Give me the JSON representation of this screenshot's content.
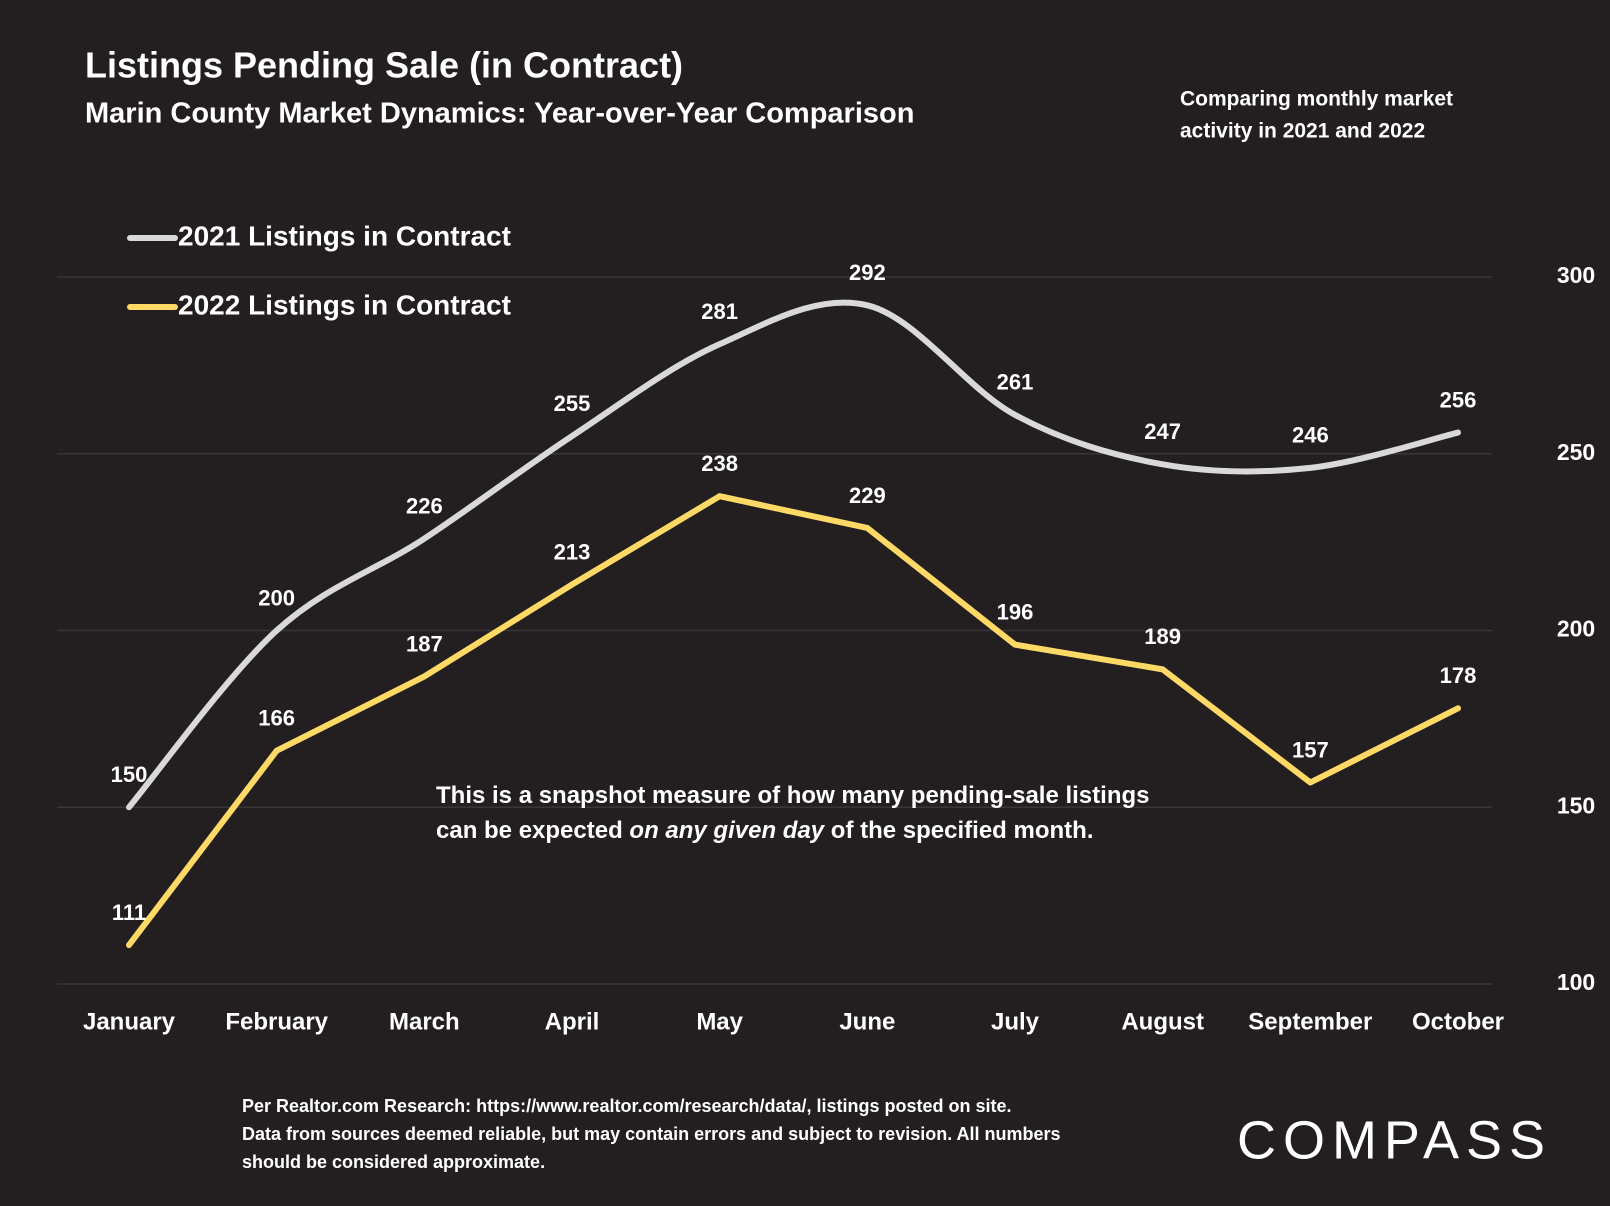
{
  "chart_data": {
    "type": "line",
    "title": "Listings Pending Sale (in Contract)",
    "subtitle": "Marin County Market Dynamics: Year-over-Year Comparison",
    "note": [
      "Comparing monthly market",
      "activity in 2021 and 2022"
    ],
    "categories": [
      "January",
      "February",
      "March",
      "April",
      "May",
      "June",
      "July",
      "August",
      "September",
      "October"
    ],
    "series": [
      {
        "name": "2021 Listings in Contract",
        "color": "#d9d9d9",
        "smooth": true,
        "values": [
          150,
          200,
          226,
          255,
          281,
          292,
          261,
          247,
          246,
          256
        ]
      },
      {
        "name": "2022 Listings in Contract",
        "color": "#ffd966",
        "smooth": false,
        "values": [
          111,
          166,
          187,
          213,
          238,
          229,
          196,
          189,
          157,
          178
        ]
      }
    ],
    "ylim": [
      100,
      300
    ],
    "yticks": [
      100,
      150,
      200,
      250,
      300
    ],
    "grid": true,
    "legend": "upper left",
    "annotation": [
      [
        {
          "text": "This is a snapshot measure of how many pending-sale listings"
        }
      ],
      [
        {
          "text": "can be expected "
        },
        {
          "text": "on any given day",
          "italic": true
        },
        {
          "text": " of the specified month."
        }
      ]
    ],
    "footnote": [
      "Per Realtor.com Research:  https://www.realtor.com/research/data/, listings posted on site.",
      "Data from sources deemed reliable, but may contain errors and subject to revision. All numbers",
      "should be considered approximate."
    ],
    "logo": "COMPASS"
  }
}
